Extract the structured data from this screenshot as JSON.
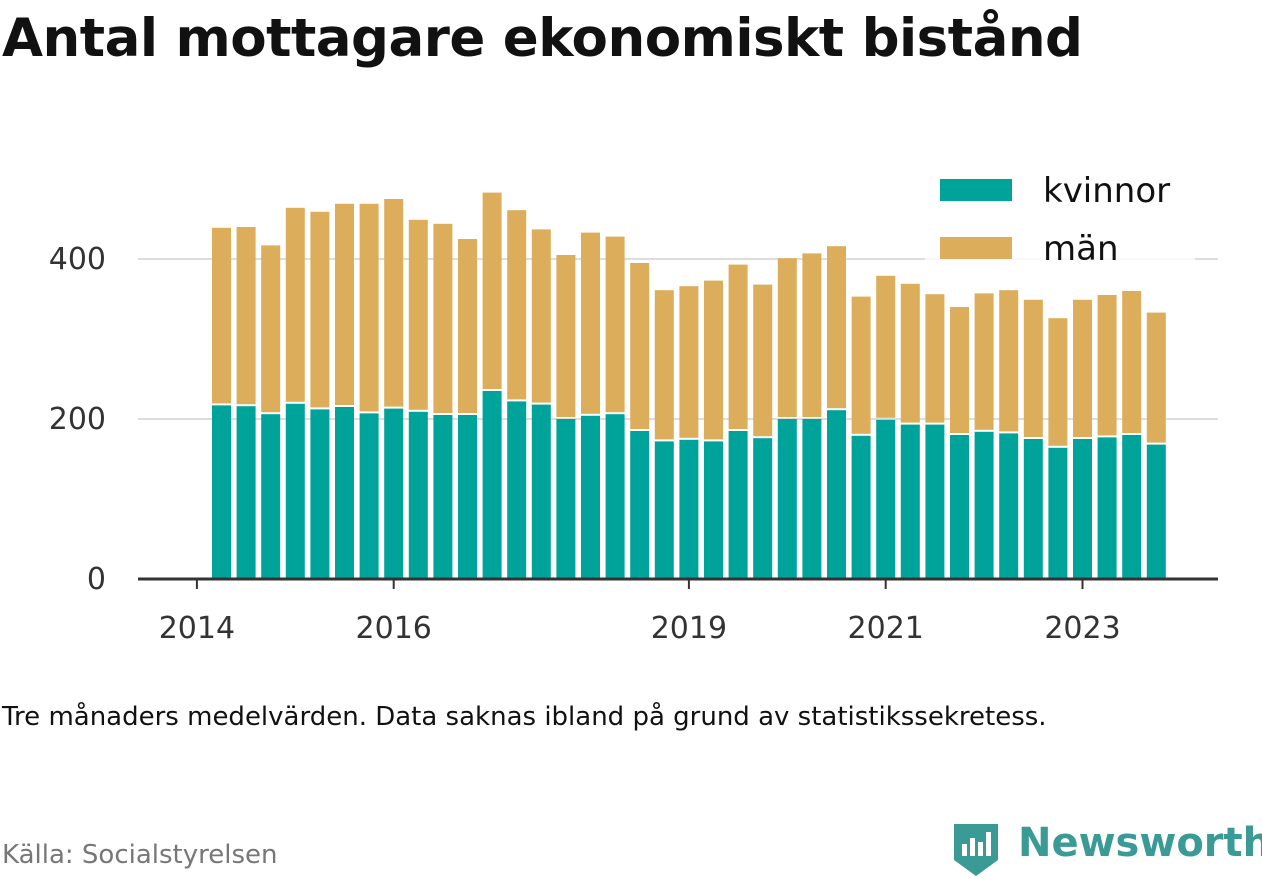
{
  "title": "Antal mottagare ekonomiskt bistånd",
  "note": "Tre månaders medelvärden. Data saknas ibland på grund av statistikssekretess.",
  "source": "Källa: Socialstyrelsen",
  "brand": "Newsworthy",
  "colors": {
    "kvinnor": "#00a399",
    "man": "#dcad5a",
    "grid": "#dddddd",
    "axis": "#333333",
    "brand": "#3a9a95"
  },
  "chart_data": {
    "type": "bar",
    "stacked": true,
    "legend_position": "top-right",
    "grid": true,
    "ylim": [
      0,
      500
    ],
    "yticks": [
      0,
      200,
      400
    ],
    "ytick_labels": [
      "0",
      "200",
      "400"
    ],
    "xticks": [
      "2014",
      "2016",
      "2019",
      "2021",
      "2023"
    ],
    "categories": [
      "2014-04",
      "2014-07",
      "2014-10",
      "2015-01",
      "2015-04",
      "2015-07",
      "2015-10",
      "2016-01",
      "2016-04",
      "2016-07",
      "2016-10",
      "2017-01",
      "2017-04",
      "2017-07",
      "2017-10",
      "2018-01",
      "2018-04",
      "2018-07",
      "2018-10",
      "2019-01",
      "2019-04",
      "2019-07",
      "2019-10",
      "2020-01",
      "2020-04",
      "2020-07",
      "2020-10",
      "2021-01",
      "2021-04",
      "2021-07",
      "2021-10",
      "2022-01",
      "2022-04",
      "2022-07",
      "2022-10",
      "2023-01",
      "2023-04",
      "2023-07",
      "2023-10"
    ],
    "series": [
      {
        "name": "kvinnor",
        "values": [
          217,
          216,
          206,
          219,
          212,
          215,
          207,
          213,
          209,
          205,
          205,
          235,
          222,
          218,
          200,
          204,
          206,
          185,
          172,
          174,
          172,
          185,
          176,
          200,
          200,
          211,
          179,
          199,
          193,
          193,
          180,
          184,
          182,
          175,
          164,
          175,
          177,
          180,
          168
        ]
      },
      {
        "name": "män",
        "values": [
          222,
          224,
          211,
          245,
          247,
          254,
          262,
          262,
          240,
          239,
          220,
          248,
          239,
          219,
          205,
          229,
          222,
          210,
          189,
          192,
          201,
          208,
          192,
          201,
          207,
          205,
          174,
          180,
          176,
          163,
          160,
          173,
          179,
          174,
          162,
          174,
          178,
          180,
          165
        ]
      }
    ]
  }
}
